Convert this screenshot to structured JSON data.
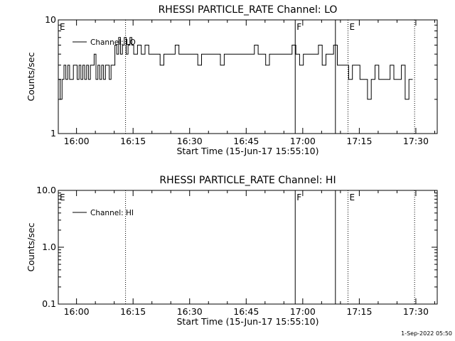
{
  "footer": {
    "timestamp": "1-Sep-2022 05:50"
  },
  "chart_data": [
    {
      "type": "line",
      "title": "RHESSI PARTICLE_RATE Channel: LO",
      "xlabel": "Start Time (15-Jun-17 15:55:10)",
      "ylabel": "Counts/sec",
      "yscale": "log",
      "ylim": [
        1,
        10
      ],
      "ytick_labels": [
        "1",
        "10"
      ],
      "xlim": [
        "15:55:10",
        "17:35:40"
      ],
      "xtick_labels": [
        "16:00",
        "16:15",
        "16:30",
        "16:45",
        "17:00",
        "17:15",
        "17:30"
      ],
      "legend": {
        "position": "top-left",
        "entries": [
          "Channel: LO"
        ]
      },
      "series": [
        {
          "name": "Channel: LO",
          "x_min_after_start": [
            0,
            0.5,
            1,
            1.5,
            2,
            2.5,
            3,
            3.5,
            4,
            4.5,
            5,
            5.5,
            6,
            6.5,
            7,
            7.5,
            8,
            8.5,
            9,
            9.5,
            10,
            10.5,
            11,
            11.5,
            12,
            12.5,
            13,
            13.5,
            14,
            14.5,
            15,
            15.5,
            16,
            16.5,
            17,
            17.5,
            18,
            18.5,
            19,
            19.5,
            20,
            21,
            22,
            23,
            24,
            25,
            26,
            27,
            28,
            29,
            30,
            31,
            32,
            33,
            34,
            35,
            36,
            37,
            38,
            39,
            40,
            41,
            42,
            43,
            44,
            45,
            46,
            47,
            48,
            49,
            50,
            51,
            52,
            53,
            54,
            55,
            56,
            57,
            58,
            59,
            60,
            61,
            62,
            63,
            64,
            65,
            66,
            67,
            68,
            69,
            70,
            71,
            72,
            73,
            74,
            75,
            76,
            77,
            78,
            79,
            80,
            81,
            82,
            83,
            84,
            85,
            86,
            87,
            88,
            89,
            90,
            91,
            92,
            93,
            94
          ],
          "values": [
            3,
            2,
            3,
            4,
            3,
            4,
            3,
            3,
            4,
            4,
            3,
            4,
            3,
            4,
            3,
            4,
            3,
            4,
            4,
            5,
            3,
            4,
            3,
            4,
            3,
            4,
            4,
            3,
            4,
            4,
            6,
            5,
            7,
            5,
            6,
            7,
            5,
            6,
            7,
            6,
            5,
            6,
            5,
            6,
            5,
            5,
            5,
            4,
            5,
            5,
            5,
            6,
            5,
            5,
            5,
            5,
            5,
            4,
            5,
            5,
            5,
            5,
            5,
            4,
            5,
            5,
            5,
            5,
            5,
            5,
            5,
            5,
            6,
            5,
            5,
            4,
            5,
            5,
            5,
            5,
            5,
            5,
            6,
            5,
            4,
            5,
            5,
            5,
            5,
            6,
            4,
            5,
            5,
            6,
            4,
            4,
            4,
            3,
            4,
            4,
            3,
            3,
            2,
            3,
            4,
            3,
            3,
            3,
            4,
            3,
            3,
            4,
            2,
            3,
            3
          ],
          "color": "#000000"
        }
      ],
      "markers": [
        {
          "label": "E",
          "time": "15:55:10",
          "style": "dotted"
        },
        {
          "label": "",
          "time": "16:13:00",
          "style": "dotted"
        },
        {
          "label": "F",
          "time": "16:58:00",
          "style": "solid"
        },
        {
          "label": "",
          "time": "17:08:40",
          "style": "solid"
        },
        {
          "label": "E",
          "time": "17:12:00",
          "style": "dotted"
        },
        {
          "label": "",
          "time": "17:29:40",
          "style": "dotted"
        }
      ]
    },
    {
      "type": "line",
      "title": "RHESSI PARTICLE_RATE Channel: HI",
      "xlabel": "Start Time (15-Jun-17 15:55:10)",
      "ylabel": "Counts/sec",
      "yscale": "log",
      "ylim": [
        0.1,
        10
      ],
      "ytick_labels": [
        "0.1",
        "1.0",
        "10.0"
      ],
      "xlim": [
        "15:55:10",
        "17:35:40"
      ],
      "xtick_labels": [
        "16:00",
        "16:15",
        "16:30",
        "16:45",
        "17:00",
        "17:15",
        "17:30"
      ],
      "legend": {
        "position": "top-left",
        "entries": [
          "Channel: HI"
        ]
      },
      "series": [
        {
          "name": "Channel: HI",
          "x_min_after_start": [],
          "values": [],
          "color": "#000000"
        }
      ],
      "markers": [
        {
          "label": "E",
          "time": "15:55:10",
          "style": "dotted"
        },
        {
          "label": "",
          "time": "16:13:00",
          "style": "dotted"
        },
        {
          "label": "F",
          "time": "16:58:00",
          "style": "solid"
        },
        {
          "label": "",
          "time": "17:08:40",
          "style": "solid"
        },
        {
          "label": "E",
          "time": "17:12:00",
          "style": "dotted"
        },
        {
          "label": "",
          "time": "17:29:40",
          "style": "dotted"
        }
      ]
    }
  ]
}
